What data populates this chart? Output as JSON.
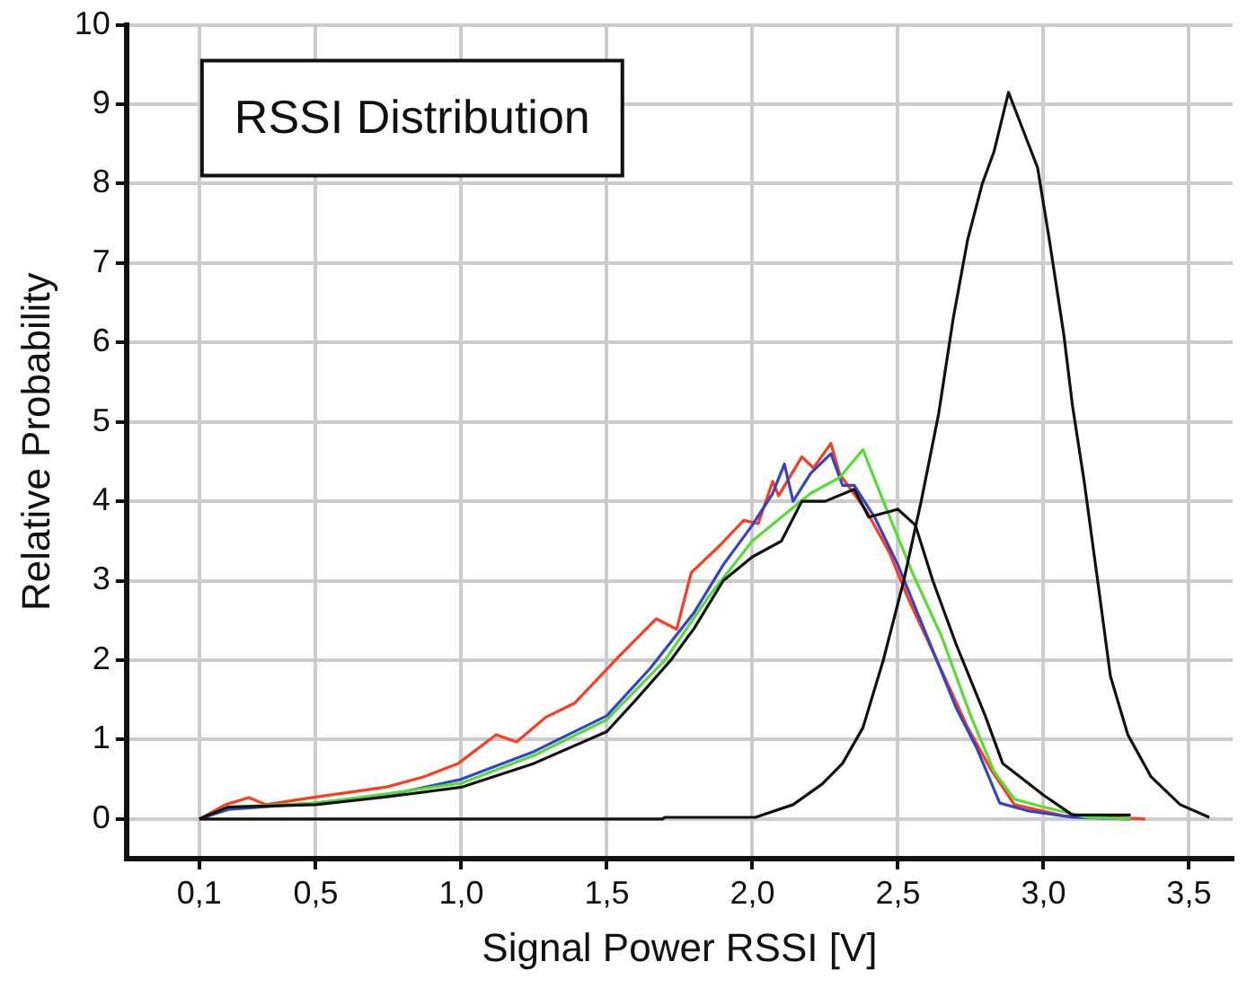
{
  "chart_data": {
    "type": "line",
    "title": "RSSI Distribution",
    "xlabel": "Signal Power RSSI [V]",
    "ylabel": "Relative Probability",
    "xlim": [
      -0.15,
      3.65
    ],
    "ylim": [
      -0.5,
      10
    ],
    "xticks": [
      {
        "value": 0.1,
        "label": "0,1"
      },
      {
        "value": 0.5,
        "label": "0,5"
      },
      {
        "value": 1.0,
        "label": "1,0"
      },
      {
        "value": 1.5,
        "label": "1,5"
      },
      {
        "value": 2.0,
        "label": "2,0"
      },
      {
        "value": 2.5,
        "label": "2,5"
      },
      {
        "value": 3.0,
        "label": "3,0"
      },
      {
        "value": 3.5,
        "label": "3,5"
      }
    ],
    "yticks": [
      0,
      1,
      2,
      3,
      4,
      5,
      6,
      7,
      8,
      9,
      10
    ],
    "grid": true,
    "legend": false,
    "marker": "none",
    "line_style": "solid",
    "series": [
      {
        "color": "#111111",
        "x": [
          0.1,
          1.69,
          1.7,
          2.01,
          2.14,
          2.24,
          2.31,
          2.38,
          2.45,
          2.52,
          2.58,
          2.64,
          2.69,
          2.74,
          2.79,
          2.83,
          2.88,
          2.98,
          3.02,
          3.07,
          3.1,
          3.14,
          3.19,
          3.23,
          3.29,
          3.37,
          3.47,
          3.57
        ],
        "values": [
          0,
          0,
          0.02,
          0.02,
          0.18,
          0.44,
          0.7,
          1.15,
          2.0,
          3.0,
          4.0,
          5.1,
          6.3,
          7.3,
          8.0,
          8.4,
          9.15,
          8.2,
          7.3,
          6.1,
          5.2,
          4.25,
          2.9,
          1.8,
          1.06,
          0.53,
          0.18,
          0.02
        ]
      },
      {
        "color": "#111111",
        "x": [
          0.1,
          0.2,
          0.5,
          0.75,
          1.0,
          1.25,
          1.5,
          1.6,
          1.72,
          1.8,
          1.9,
          2.0,
          2.1,
          2.17,
          2.25,
          2.35,
          2.4,
          2.5,
          2.56,
          2.62,
          2.7,
          2.8,
          2.86,
          2.93,
          3.0,
          3.1,
          3.3
        ],
        "values": [
          0,
          0.15,
          0.18,
          0.28,
          0.4,
          0.7,
          1.1,
          1.5,
          2.0,
          2.4,
          3.0,
          3.3,
          3.5,
          4.0,
          4.0,
          4.15,
          3.8,
          3.9,
          3.7,
          3.0,
          2.2,
          1.3,
          0.7,
          0.5,
          0.3,
          0.05,
          0.05
        ]
      },
      {
        "color": "#55dd33",
        "x": [
          0.1,
          0.2,
          0.5,
          0.75,
          1.0,
          1.25,
          1.5,
          1.7,
          1.85,
          2.0,
          2.1,
          2.2,
          2.3,
          2.38,
          2.45,
          2.55,
          2.65,
          2.75,
          2.83,
          2.9,
          3.0,
          3.15,
          3.3
        ],
        "values": [
          0,
          0.15,
          0.2,
          0.32,
          0.45,
          0.8,
          1.25,
          2.0,
          2.8,
          3.5,
          3.8,
          4.1,
          4.3,
          4.65,
          4.0,
          3.1,
          2.3,
          1.3,
          0.6,
          0.25,
          0.15,
          0.02,
          0
        ]
      },
      {
        "color": "#3344cc",
        "x": [
          0.1,
          0.2,
          0.5,
          0.75,
          1.0,
          1.25,
          1.5,
          1.65,
          1.8,
          1.9,
          2.0,
          2.07,
          2.11,
          2.14,
          2.2,
          2.27,
          2.31,
          2.35,
          2.42,
          2.5,
          2.6,
          2.7,
          2.77,
          2.85,
          2.95,
          3.1,
          3.3
        ],
        "values": [
          0,
          0.12,
          0.2,
          0.3,
          0.5,
          0.85,
          1.3,
          1.9,
          2.6,
          3.2,
          3.7,
          4.1,
          4.47,
          4.0,
          4.35,
          4.6,
          4.2,
          4.2,
          3.8,
          3.2,
          2.3,
          1.4,
          0.9,
          0.2,
          0.1,
          0.02,
          0
        ]
      },
      {
        "color": "#ff3b1f",
        "x": [
          0.1,
          0.19,
          0.27,
          0.33,
          0.49,
          0.74,
          0.87,
          0.99,
          1.12,
          1.19,
          1.29,
          1.39,
          1.54,
          1.67,
          1.74,
          1.79,
          1.89,
          1.97,
          2.02,
          2.07,
          2.09,
          2.17,
          2.21,
          2.27,
          2.3,
          2.39,
          2.47,
          2.54,
          2.64,
          2.74,
          2.82,
          2.9,
          3.07,
          3.35
        ],
        "values": [
          0,
          0.18,
          0.27,
          0.18,
          0.27,
          0.4,
          0.53,
          0.7,
          1.06,
          0.97,
          1.28,
          1.46,
          2.04,
          2.52,
          2.39,
          3.1,
          3.45,
          3.76,
          3.72,
          4.25,
          4.07,
          4.56,
          4.42,
          4.73,
          4.34,
          3.89,
          3.36,
          2.74,
          1.95,
          1.15,
          0.62,
          0.18,
          0.04,
          0
        ]
      }
    ]
  }
}
